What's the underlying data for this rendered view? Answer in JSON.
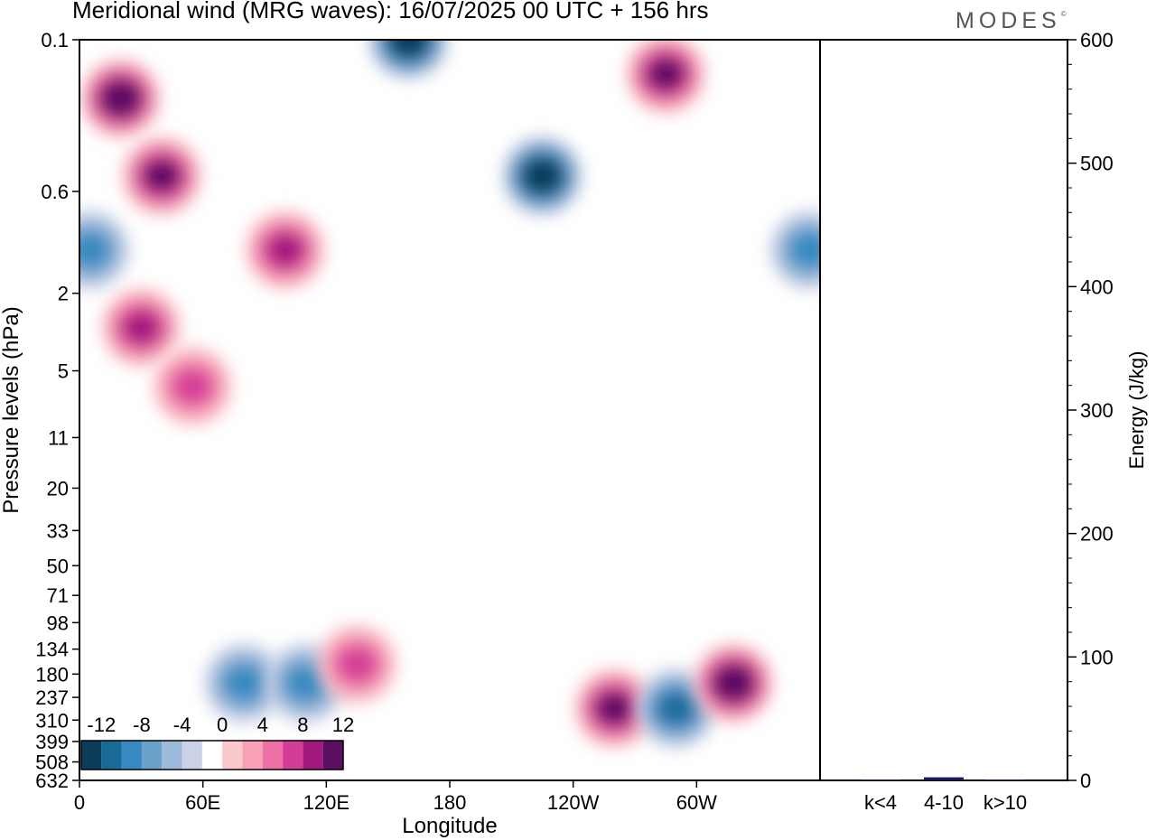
{
  "header": {
    "title": "Meridional wind (MRG waves):  16/07/2025  00 UTC  + 156 hrs",
    "brand": "MODES",
    "brand_mark": "©"
  },
  "chart_data": [
    {
      "type": "heatmap",
      "title": "Meridional wind (MRG waves):  16/07/2025  00 UTC  + 156 hrs",
      "xlabel": "Longitude",
      "ylabel": "Pressure levels (hPa)",
      "x_ticks": [
        "0",
        "60E",
        "120E",
        "180",
        "120W",
        "60W"
      ],
      "x_tick_degrees": [
        0,
        60,
        120,
        180,
        240,
        300
      ],
      "x_range": [
        0,
        360
      ],
      "y_ticks": [
        "0.1",
        "0.6",
        "2",
        "5",
        "11",
        "20",
        "33",
        "50",
        "71",
        "98",
        "134",
        "180",
        "237",
        "310",
        "399",
        "508",
        "632"
      ],
      "y_scale": "log",
      "y_inverted": true,
      "colorbar": {
        "labels": [
          "-12",
          "-8",
          "-4",
          "0",
          "4",
          "8",
          "12"
        ],
        "levels": [
          -14,
          -12,
          -10,
          -8,
          -6,
          -4,
          -2,
          2,
          4,
          6,
          8,
          10,
          12,
          14
        ],
        "colors": [
          "#0b3c5a",
          "#1a6a98",
          "#3689c1",
          "#6aa2cb",
          "#9ebadb",
          "#cbd1e6",
          "#ffffff",
          "#f9c8ca",
          "#f7a0b6",
          "#ee70a7",
          "#d43d97",
          "#a1197c",
          "#5c0e63"
        ],
        "placement": "bottom-left"
      },
      "features": [
        {
          "lon": 20,
          "p": 0.2,
          "value": 13
        },
        {
          "lon": 40,
          "p": 0.5,
          "value": 11
        },
        {
          "lon": 30,
          "p": 3,
          "value": 9
        },
        {
          "lon": 55,
          "p": 6,
          "value": 8
        },
        {
          "lon": 100,
          "p": 1.2,
          "value": 10
        },
        {
          "lon": 160,
          "p": 0.1,
          "value": -13
        },
        {
          "lon": 225,
          "p": 0.5,
          "value": -14
        },
        {
          "lon": 285,
          "p": 0.15,
          "value": 12
        },
        {
          "lon": 5,
          "p": 1.2,
          "value": -8
        },
        {
          "lon": 355,
          "p": 1.2,
          "value": -8
        },
        {
          "lon": 80,
          "p": 200,
          "value": -8
        },
        {
          "lon": 110,
          "p": 200,
          "value": -8
        },
        {
          "lon": 135,
          "p": 160,
          "value": 8
        },
        {
          "lon": 260,
          "p": 270,
          "value": 12
        },
        {
          "lon": 290,
          "p": 270,
          "value": -10
        },
        {
          "lon": 318,
          "p": 200,
          "value": 14
        }
      ]
    },
    {
      "type": "bar",
      "categories": [
        "k<4",
        "4-10",
        "k>10"
      ],
      "values": [
        0.5,
        2.5,
        0.3
      ],
      "ylabel": "Energy (J/kg)",
      "ylim": [
        0,
        600
      ],
      "y_ticks": [
        "0",
        "100",
        "200",
        "300",
        "400",
        "500",
        "600"
      ],
      "y_tick_values": [
        0,
        100,
        200,
        300,
        400,
        500,
        600
      ],
      "bar_color": "#1a1a5a"
    }
  ]
}
